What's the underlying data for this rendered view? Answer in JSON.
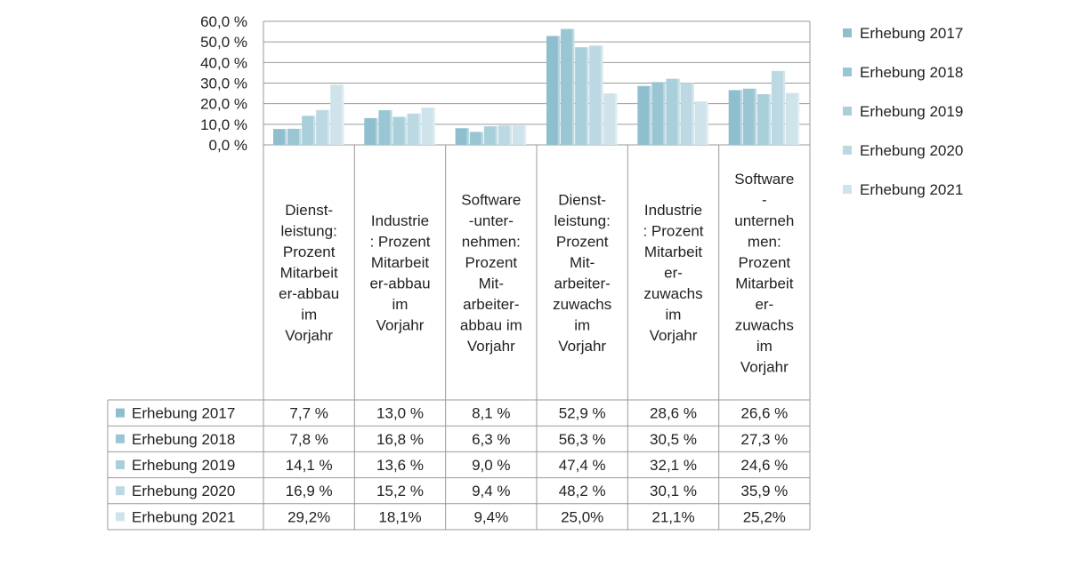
{
  "chart_data": {
    "type": "bar",
    "ylim": [
      0,
      60
    ],
    "y_ticks": [
      "0,0 %",
      "10,0 %",
      "20,0 %",
      "30,0 %",
      "40,0 %",
      "50,0 %",
      "60,0 %"
    ],
    "categories": [
      [
        "Dienst-",
        "leistung:",
        "Prozent",
        "Mitarbeit",
        "er-abbau",
        "im",
        "Vorjahr"
      ],
      [
        "Industrie",
        ": Prozent",
        "Mitarbeit",
        "er-abbau",
        "im",
        "Vorjahr"
      ],
      [
        "Software",
        "-unter-",
        "nehmen:",
        "Prozent",
        "Mit-",
        "arbeiter-",
        "abbau im",
        "Vorjahr"
      ],
      [
        "Dienst-",
        "leistung:",
        "Prozent",
        "Mit-",
        "arbeiter-",
        "zuwachs",
        "im",
        "Vorjahr"
      ],
      [
        "Industrie",
        ": Prozent",
        "Mitarbeit",
        "er-",
        "zuwachs",
        "im",
        "Vorjahr"
      ],
      [
        "Software",
        "-",
        "unterneh",
        "men:",
        "Prozent",
        "Mitarbeit",
        "er-",
        "zuwachs",
        "im",
        "Vorjahr"
      ]
    ],
    "series": [
      {
        "name": "Erhebung 2017",
        "color": "#8fbfcf",
        "values": [
          7.7,
          13.0,
          8.1,
          52.9,
          28.6,
          26.6
        ],
        "labels": [
          "7,7 %",
          "13,0 %",
          "8,1 %",
          "52,9 %",
          "28,6 %",
          "26,6 %"
        ]
      },
      {
        "name": "Erhebung 2018",
        "color": "#9ac6d4",
        "values": [
          7.8,
          16.8,
          6.3,
          56.3,
          30.5,
          27.3
        ],
        "labels": [
          "7,8 %",
          "16,8 %",
          "6,3 %",
          "56,3 %",
          "30,5 %",
          "27,3 %"
        ]
      },
      {
        "name": "Erhebung 2019",
        "color": "#a9cfdb",
        "values": [
          14.1,
          13.6,
          9.0,
          47.4,
          32.1,
          24.6
        ],
        "labels": [
          "14,1 %",
          "13,6 %",
          "9,0 %",
          "47,4 %",
          "32,1 %",
          "24,6 %"
        ]
      },
      {
        "name": "Erhebung 2020",
        "color": "#bcd9e3",
        "values": [
          16.9,
          15.2,
          9.4,
          48.2,
          30.1,
          35.9
        ],
        "labels": [
          "16,9 %",
          "15,2 %",
          "9,4 %",
          "48,2 %",
          "30,1 %",
          "35,9 %"
        ]
      },
      {
        "name": "Erhebung 2021",
        "color": "#cfe3ea",
        "values": [
          29.2,
          18.1,
          9.4,
          25.0,
          21.1,
          25.2
        ],
        "labels": [
          "29,2%",
          "18,1%",
          "9,4%",
          "25,0%",
          "21,1%",
          "25,2%"
        ]
      }
    ],
    "grid": true,
    "legend": "right",
    "data_table": true
  }
}
